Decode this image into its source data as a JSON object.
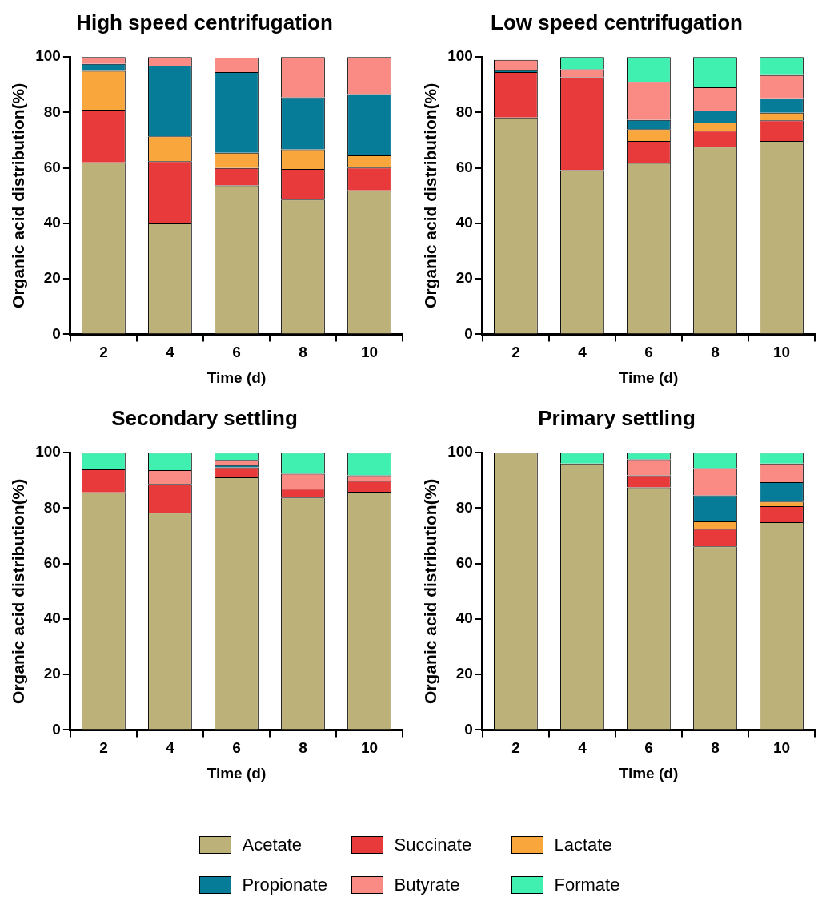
{
  "chart_data": [
    {
      "type": "bar",
      "stacked": true,
      "title": "High speed centrifugation",
      "xlabel": "Time (d)",
      "ylabel": "Organic acid distribution(%)",
      "categories": [
        "2",
        "4",
        "6",
        "8",
        "10"
      ],
      "ylim": [
        0,
        100
      ],
      "yticks": [
        0,
        20,
        40,
        60,
        80,
        100
      ],
      "grid": false,
      "legend": "bottom",
      "series": [
        {
          "name": "Acetate",
          "color": "#bdb17a",
          "values": [
            62,
            40,
            53.7,
            48.6,
            51.9
          ]
        },
        {
          "name": "Succinate",
          "color": "#e83a3a",
          "values": [
            19,
            22.4,
            6.3,
            11,
            8.2
          ]
        },
        {
          "name": "Lactate",
          "color": "#f9a63c",
          "values": [
            14,
            9,
            5.5,
            7.1,
            4.4
          ]
        },
        {
          "name": "Propionate",
          "color": "#067c99",
          "values": [
            2.5,
            25.5,
            29.1,
            18.8,
            22.1
          ]
        },
        {
          "name": "Butyrate",
          "color": "#f98a84",
          "values": [
            2.5,
            3.1,
            5.2,
            14.5,
            13.4
          ]
        },
        {
          "name": "Formate",
          "color": "#3ff0b0",
          "values": [
            0,
            0,
            null,
            0,
            0
          ]
        }
      ]
    },
    {
      "type": "bar",
      "stacked": true,
      "title": "Low speed centrifugation",
      "xlabel": "Time (d)",
      "ylabel": "Organic acid distribution(%)",
      "categories": [
        "2",
        "4",
        "6",
        "8",
        "10"
      ],
      "ylim": [
        0,
        100
      ],
      "yticks": [
        0,
        20,
        40,
        60,
        80,
        100
      ],
      "grid": false,
      "series": [
        {
          "color": "#bdb17a",
          "values": [
            78.2,
            59.2,
            61.8,
            67.6,
            69.7
          ]
        },
        {
          "color": "#e83a3a",
          "values": [
            16.4,
            33.5,
            7.9,
            5.8,
            7.5
          ]
        },
        {
          "color": "#f9a63c",
          "values": [
            null,
            0,
            4.3,
            3,
            2.7
          ]
        },
        {
          "color": "#067c99",
          "values": [
            0.6,
            0,
            3.3,
            4.3,
            5.2
          ]
        },
        {
          "color": "#f98a84",
          "values": [
            3.8,
            2.9,
            13.7,
            8.4,
            8.4
          ]
        },
        {
          "color": "#3ff0b0",
          "values": [
            null,
            4.4,
            9,
            10.9,
            6.5
          ]
        }
      ]
    },
    {
      "type": "bar",
      "stacked": true,
      "title": "Secondary settling",
      "xlabel": "Time (d)",
      "ylabel": "Organic acid distribution(%)",
      "categories": [
        "2",
        "4",
        "6",
        "8",
        "10"
      ],
      "ylim": [
        0,
        100
      ],
      "yticks": [
        0,
        20,
        40,
        60,
        80,
        100
      ],
      "grid": false,
      "series": [
        {
          "color": "#bdb17a",
          "values": [
            85.7,
            78.3,
            91.1,
            83.8,
            85.9
          ]
        },
        {
          "color": "#e83a3a",
          "values": [
            8.3,
            10.4,
            3.6,
            3.2,
            3.9
          ]
        },
        {
          "color": "#f9a63c",
          "values": [
            0,
            0,
            0,
            0,
            0
          ]
        },
        {
          "color": "#067c99",
          "values": [
            0,
            0,
            0.8,
            0,
            0
          ]
        },
        {
          "color": "#f98a84",
          "values": [
            0,
            5,
            1.9,
            5.4,
            2
          ]
        },
        {
          "color": "#3ff0b0",
          "values": [
            6,
            6.3,
            2.6,
            7.6,
            8.2
          ]
        }
      ]
    },
    {
      "type": "bar",
      "stacked": true,
      "title": "Primary settling",
      "xlabel": "Time (d)",
      "ylabel": "Organic acid distribution(%)",
      "categories": [
        "2",
        "4",
        "6",
        "8",
        "10"
      ],
      "ylim": [
        0,
        100
      ],
      "yticks": [
        0,
        20,
        40,
        60,
        80,
        100
      ],
      "grid": false,
      "series": [
        {
          "color": "#bdb17a",
          "values": [
            100,
            96.1,
            87.5,
            66.2,
            74.9
          ]
        },
        {
          "color": "#e83a3a",
          "values": [
            0,
            0,
            4.3,
            6.3,
            5.8
          ]
        },
        {
          "color": "#f9a63c",
          "values": [
            0,
            0,
            0,
            2.7,
            1.7
          ]
        },
        {
          "color": "#067c99",
          "values": [
            0,
            0,
            0,
            9.4,
            7
          ]
        },
        {
          "color": "#f98a84",
          "values": [
            0,
            0,
            5.8,
            9.8,
            6.7
          ]
        },
        {
          "color": "#3ff0b0",
          "values": [
            0,
            3.9,
            2.4,
            5.6,
            3.9
          ]
        }
      ]
    }
  ]
}
